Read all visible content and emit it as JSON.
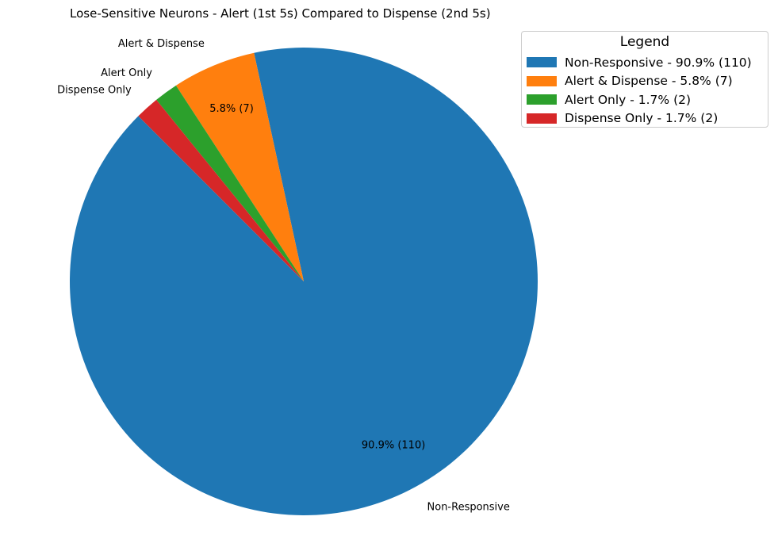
{
  "chart_data": {
    "type": "pie",
    "title": "Lose-Sensitive Neurons - Alert (1st 5s) Compared to Dispense (2nd 5s)",
    "slices": [
      {
        "label": "Non-Responsive",
        "value": 110,
        "percent_label": "90.9% (110)",
        "color": "#1f77b4",
        "show_pct": true
      },
      {
        "label": "Alert & Dispense",
        "value": 7,
        "percent_label": "5.8% (7)",
        "color": "#ff7f0e",
        "show_pct": true
      },
      {
        "label": "Alert Only",
        "value": 2,
        "percent_label": "1.7% (2)",
        "color": "#2ca02c",
        "show_pct": false
      },
      {
        "label": "Dispense Only",
        "value": 2,
        "percent_label": "1.7% (2)",
        "color": "#d62728",
        "show_pct": false
      }
    ],
    "legend": {
      "title": "Legend",
      "placement": "top-right",
      "entries": [
        "Non-Responsive - 90.9% (110)",
        "Alert & Dispense - 5.8% (7)",
        "Alert Only - 1.7% (2)",
        "Dispense Only - 1.7% (2)"
      ]
    }
  }
}
